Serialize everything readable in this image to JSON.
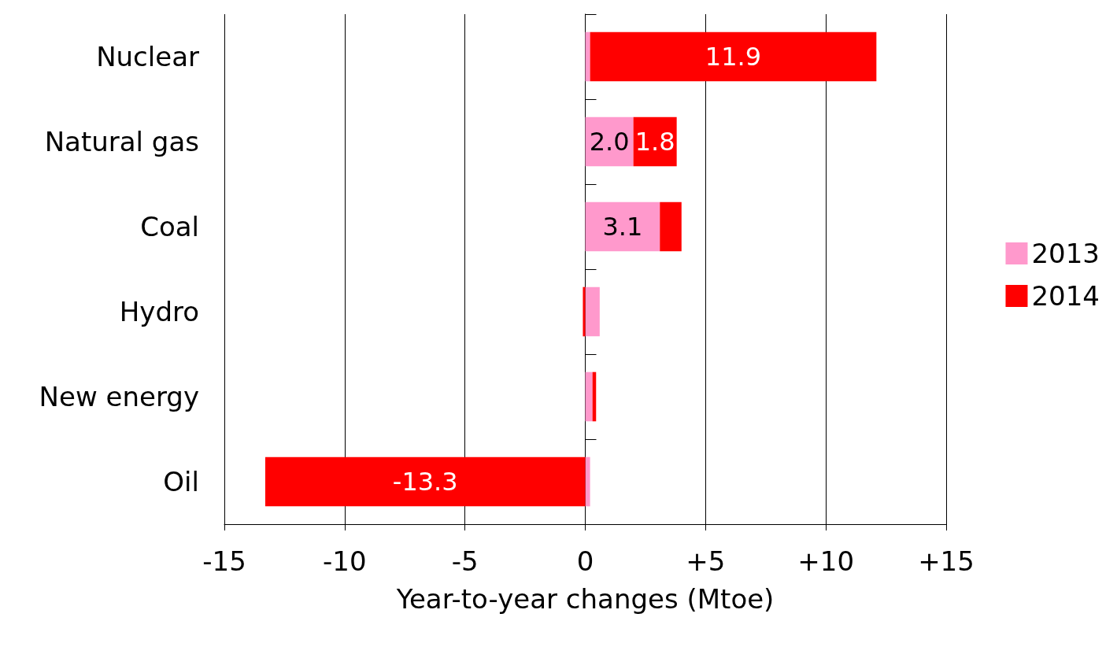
{
  "chart_data": {
    "type": "bar",
    "orientation": "horizontal",
    "stacked": true,
    "xlabel": "Year-to-year changes (Mtoe)",
    "categories": [
      "Nuclear",
      "Natural gas",
      "Coal",
      "Hydro",
      "New energy",
      "Oil"
    ],
    "series": [
      {
        "name": "2013",
        "color": "#ff99cc",
        "values": [
          0.2,
          2.0,
          3.1,
          0.6,
          0.3,
          0.2
        ],
        "value_labels": [
          null,
          "2.0",
          "3.1",
          null,
          null,
          null
        ]
      },
      {
        "name": "2014",
        "color": "#ff0000",
        "values": [
          11.9,
          1.8,
          0.9,
          -0.1,
          0.15,
          -13.3
        ],
        "value_labels": [
          "11.9",
          "1.8",
          null,
          null,
          null,
          "-13.3"
        ]
      }
    ],
    "xlim": [
      -15,
      15
    ],
    "xticks": [
      -15,
      -10,
      -5,
      0,
      {
        "value": 5,
        "label": "+5"
      },
      {
        "value": 10,
        "label": "+10"
      },
      {
        "value": 15,
        "label": "+15"
      }
    ],
    "grid": "x",
    "legend": "right"
  }
}
